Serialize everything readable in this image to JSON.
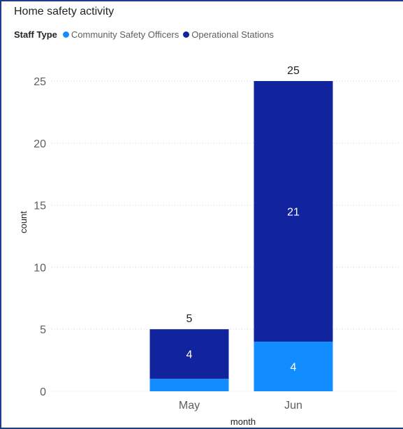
{
  "chart_data": {
    "type": "bar",
    "stacked": true,
    "title": "Home safety activity",
    "legend_title": "Staff Type",
    "categories": [
      "May",
      "Jun"
    ],
    "series": [
      {
        "name": "Community Safety Officers",
        "values": [
          1,
          4
        ],
        "color": "#118dff"
      },
      {
        "name": "Operational Stations",
        "values": [
          4,
          21
        ],
        "color": "#12239e"
      }
    ],
    "totals": [
      5,
      25
    ],
    "xlabel": "month",
    "ylabel": "count",
    "ylim": [
      0,
      25
    ],
    "yticks": [
      0,
      5,
      10,
      15,
      20,
      25
    ],
    "grid": true,
    "legend_position": "top-left"
  }
}
